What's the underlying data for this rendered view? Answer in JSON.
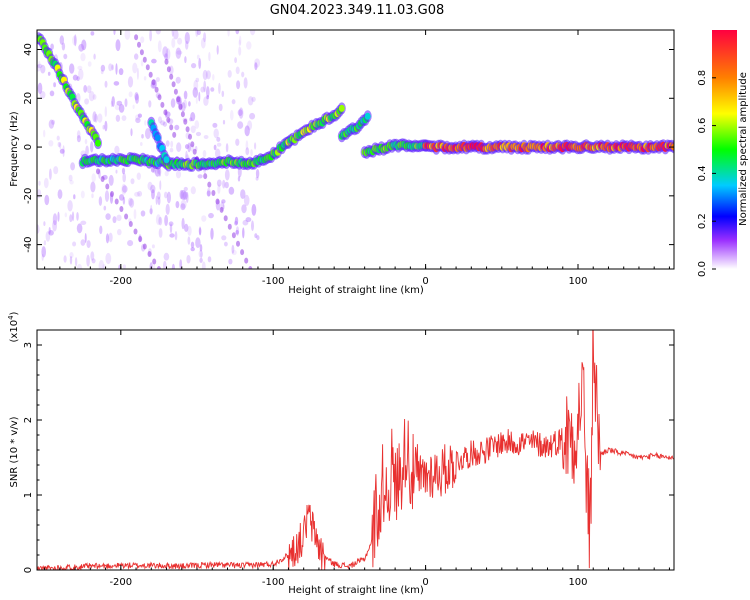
{
  "title": "GN04.2023.349.11.03.G08",
  "chart_data": [
    {
      "type": "heatmap",
      "title": "",
      "xlabel": "Height of straight line (km)",
      "ylabel": "Frequency (Hz)",
      "xlim": [
        -255,
        163
      ],
      "ylim": [
        -50,
        48
      ],
      "xticks": [
        -200,
        -100,
        0,
        100
      ],
      "yticks": [
        -40,
        -20,
        0,
        20,
        40
      ],
      "colorbar": {
        "label": "Normalized spectral amplitude",
        "range": [
          0,
          1
        ],
        "ticks": [
          0.0,
          0.2,
          0.4,
          0.6,
          0.8
        ],
        "colors": [
          "#ffffff",
          "#9b30ff",
          "#0000ff",
          "#00ccff",
          "#00ff00",
          "#ffff00",
          "#ff8000",
          "#ff0040"
        ]
      },
      "ridges": [
        {
          "x": [
            -254,
            -245,
            -235,
            -225,
            -215
          ],
          "y": [
            45,
            36,
            24,
            12,
            2
          ],
          "amp": 0.55
        },
        {
          "x": [
            -225,
            -200,
            -175,
            -170
          ],
          "y": [
            -6,
            -5,
            -6,
            -6
          ],
          "amp": 0.45
        },
        {
          "x": [
            -170,
            -150,
            -130,
            -115,
            -100,
            -90
          ],
          "y": [
            -7,
            -7,
            -6,
            -7,
            -3,
            2
          ],
          "amp": 0.5
        },
        {
          "x": [
            -90,
            -75,
            -60,
            -55
          ],
          "y": [
            2,
            8,
            13,
            16
          ],
          "amp": 0.55
        },
        {
          "x": [
            -180,
            -175,
            -170
          ],
          "y": [
            10,
            2,
            -5
          ],
          "amp": 0.35
        },
        {
          "x": [
            -55,
            -45,
            -38
          ],
          "y": [
            5,
            8,
            12
          ],
          "amp": 0.45
        },
        {
          "x": [
            -40,
            -25,
            -10,
            0
          ],
          "y": [
            -2,
            0,
            1,
            0
          ],
          "amp": 0.5
        },
        {
          "x": [
            0,
            40,
            80,
            120,
            163
          ],
          "y": [
            0,
            0,
            0,
            0,
            0
          ],
          "amp": 0.85
        }
      ]
    },
    {
      "type": "line",
      "title": "",
      "xlabel": "Height of straight line (km)",
      "ylabel": "SNR (10 * v/v)",
      "yunit": "(x10",
      "yunit_exp": "4",
      "yunit_close": ")",
      "xlim": [
        -255,
        163
      ],
      "ylim": [
        0,
        3.2
      ],
      "xticks": [
        -200,
        -100,
        0,
        100
      ],
      "yticks": [
        0,
        1,
        2,
        3
      ],
      "color": "#e8302f",
      "x": [
        -255,
        -240,
        -220,
        -200,
        -180,
        -160,
        -140,
        -120,
        -100,
        -90,
        -85,
        -80,
        -77,
        -75,
        -72,
        -68,
        -60,
        -50,
        -40,
        -35,
        -32,
        -30,
        -28,
        -25,
        -22,
        -20,
        -15,
        -12,
        -10,
        -5,
        0,
        5,
        10,
        20,
        30,
        40,
        50,
        60,
        70,
        80,
        90,
        95,
        100,
        103,
        105,
        108,
        110,
        112,
        115,
        120,
        130,
        140,
        150,
        163
      ],
      "y": [
        0.02,
        0.03,
        0.05,
        0.06,
        0.06,
        0.05,
        0.07,
        0.06,
        0.08,
        0.2,
        0.3,
        0.45,
        0.75,
        0.6,
        0.45,
        0.2,
        0.08,
        0.05,
        0.15,
        0.4,
        0.9,
        0.7,
        1.2,
        1.0,
        1.4,
        1.1,
        1.4,
        1.75,
        1.3,
        1.2,
        1.25,
        1.3,
        1.3,
        1.45,
        1.55,
        1.6,
        1.7,
        1.7,
        1.7,
        1.65,
        1.75,
        1.8,
        1.9,
        2.6,
        1.5,
        0.3,
        3.2,
        2.2,
        1.55,
        1.6,
        1.55,
        1.5,
        1.52,
        1.5
      ]
    }
  ]
}
